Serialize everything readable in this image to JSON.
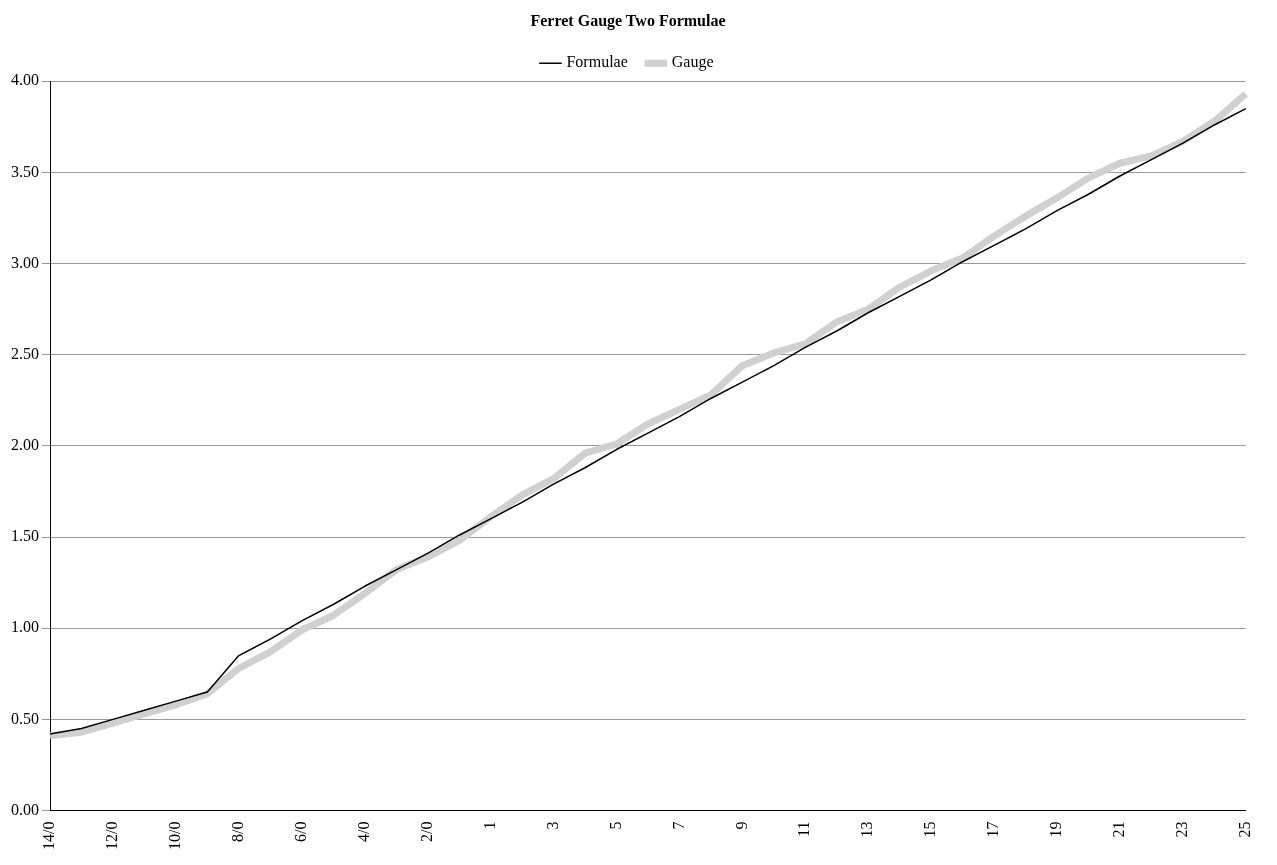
{
  "chart_data": {
    "type": "line",
    "title": "Ferret Gauge Two Formulae",
    "categories": [
      "14/0",
      null,
      "12/0",
      null,
      "10/0",
      null,
      "8/0",
      null,
      "6/0",
      null,
      "4/0",
      null,
      "2/0",
      null,
      "1",
      null,
      "3",
      null,
      "5",
      null,
      "7",
      null,
      "9",
      null,
      "11",
      null,
      "13",
      null,
      "15",
      null,
      "17",
      null,
      "19",
      null,
      "21",
      null,
      "23",
      null,
      "25"
    ],
    "series": [
      {
        "name": "Gauge",
        "color": "#d0d0d0",
        "values": [
          0.41,
          0.43,
          0.48,
          0.53,
          0.58,
          0.64,
          0.78,
          0.87,
          0.99,
          1.07,
          1.19,
          1.32,
          1.39,
          1.48,
          1.61,
          1.73,
          1.82,
          1.96,
          2.01,
          2.12,
          2.2,
          2.28,
          2.44,
          2.51,
          2.56,
          2.68,
          2.75,
          2.87,
          2.96,
          3.03,
          3.15,
          3.26,
          3.36,
          3.47,
          3.55,
          3.59,
          3.67,
          3.78,
          3.93
        ]
      },
      {
        "name": "Formulae",
        "color": "#000000",
        "values": [
          0.42,
          0.45,
          0.5,
          0.55,
          0.6,
          0.65,
          0.85,
          0.94,
          1.04,
          1.13,
          1.23,
          1.32,
          1.41,
          1.51,
          1.6,
          1.69,
          1.79,
          1.88,
          1.98,
          2.07,
          2.16,
          2.26,
          2.35,
          2.44,
          2.54,
          2.63,
          2.73,
          2.82,
          2.91,
          3.01,
          3.1,
          3.19,
          3.29,
          3.38,
          3.48,
          3.57,
          3.66,
          3.76,
          3.85
        ]
      }
    ],
    "ylim": [
      0,
      4
    ],
    "yticks": [
      {
        "value": 0,
        "label": "0.00"
      },
      {
        "value": 0.5,
        "label": "0.50"
      },
      {
        "value": 1,
        "label": "1.00"
      },
      {
        "value": 1.5,
        "label": "1.50"
      },
      {
        "value": 2,
        "label": "2.00"
      },
      {
        "value": 2.5,
        "label": "2.50"
      },
      {
        "value": 3,
        "label": "3.00"
      },
      {
        "value": 3.5,
        "label": "3.50"
      },
      {
        "value": 4,
        "label": "4.00"
      }
    ],
    "grid": "y",
    "legend": "top",
    "marker": "none",
    "line_style": "solid"
  }
}
